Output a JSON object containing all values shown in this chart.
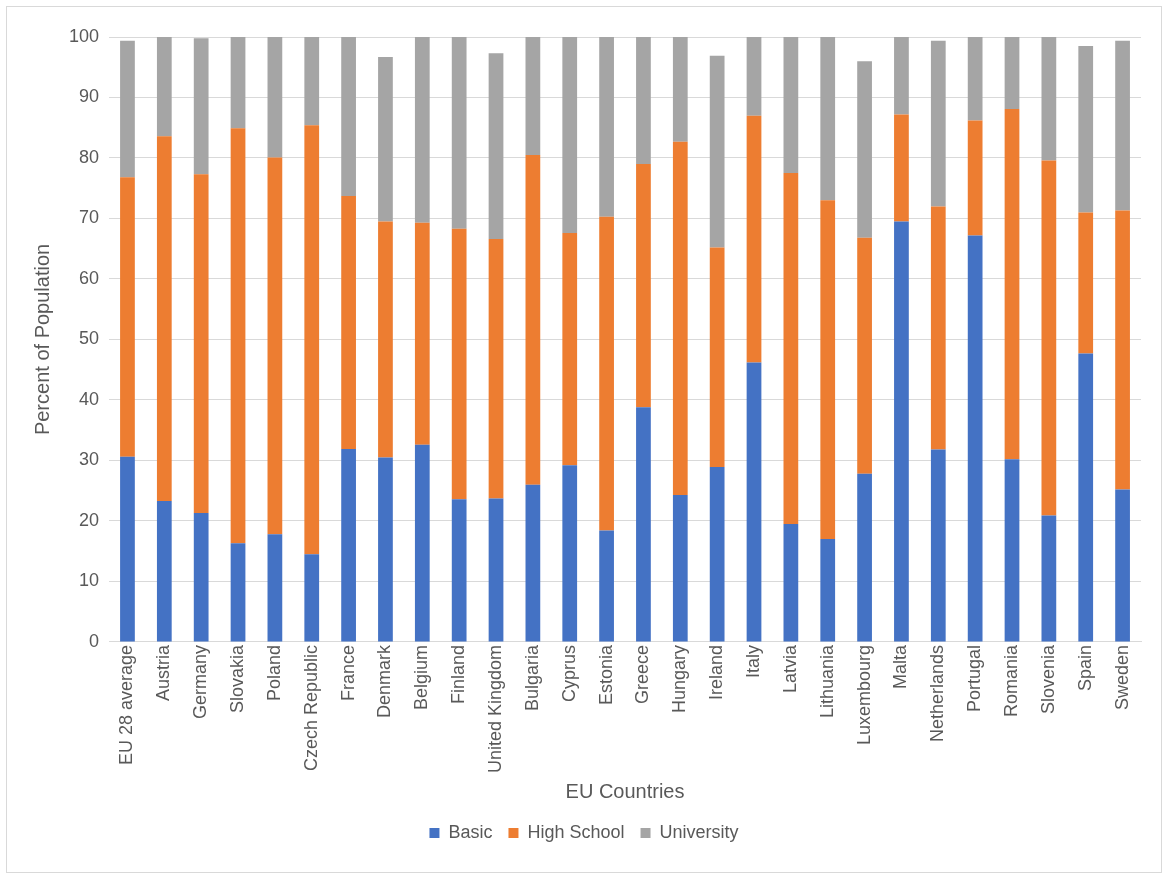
{
  "chart_data": {
    "type": "bar",
    "stacked": true,
    "xlabel": "EU Countries",
    "ylabel": "Percent of Population",
    "categories": [
      "EU 28 average",
      "Austria",
      "Germany",
      "Slovakia",
      "Poland",
      "Czech Republic",
      "France",
      "Denmark",
      "Belgium",
      "Finland",
      "United Kingdom",
      "Bulgaria",
      "Cyprus",
      "Estonia",
      "Greece",
      "Hungary",
      "Ireland",
      "Italy",
      "Latvia",
      "Lithuania",
      "Luxembourg",
      "Malta",
      "Netherlands",
      "Portugal",
      "Romania",
      "Slovenia",
      "Spain",
      "Sweden"
    ],
    "series": [
      {
        "name": "Basic",
        "color": "#4472c4",
        "values": [
          30.6,
          23.3,
          21.3,
          16.3,
          17.8,
          14.5,
          31.9,
          30.5,
          32.6,
          23.6,
          23.7,
          26.0,
          29.2,
          18.4,
          38.8,
          24.3,
          28.9,
          46.2,
          19.5,
          17.0,
          27.8,
          69.5,
          31.8,
          67.2,
          30.2,
          20.9,
          47.7,
          25.2
        ]
      },
      {
        "name": "High School",
        "color": "#ed7d31",
        "values": [
          46.2,
          60.3,
          56.0,
          68.6,
          62.3,
          70.9,
          41.8,
          39.0,
          36.7,
          44.7,
          42.9,
          54.5,
          38.4,
          51.9,
          40.2,
          58.4,
          36.3,
          40.8,
          58.0,
          56.0,
          39.0,
          17.7,
          40.2,
          19.0,
          57.9,
          58.7,
          23.3,
          46.1
        ]
      },
      {
        "name": "University",
        "color": "#a5a5a5",
        "values": [
          22.6,
          16.4,
          22.5,
          15.1,
          19.9,
          14.6,
          26.3,
          27.2,
          30.7,
          31.7,
          30.7,
          19.5,
          32.4,
          29.7,
          21.0,
          17.3,
          31.7,
          13.0,
          22.5,
          27.0,
          29.2,
          12.8,
          27.4,
          13.8,
          11.9,
          20.4,
          27.5,
          28.1
        ]
      }
    ],
    "ylim": [
      0,
      100
    ],
    "yticks": [
      0,
      10,
      20,
      30,
      40,
      50,
      60,
      70,
      80,
      90,
      100
    ],
    "grid": "y",
    "legend": "bottom"
  }
}
